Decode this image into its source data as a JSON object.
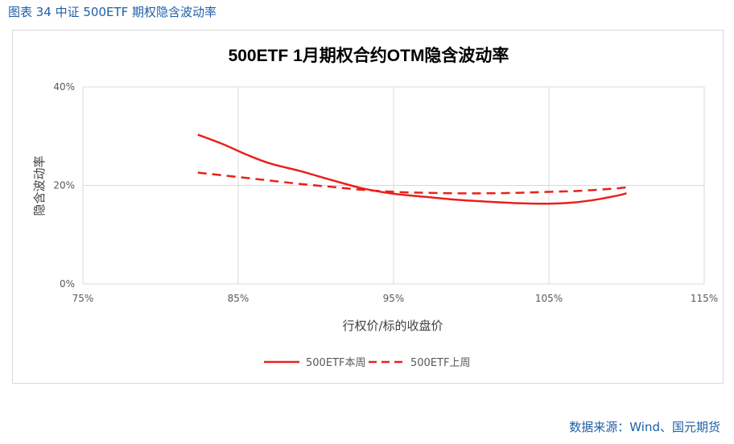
{
  "figure": {
    "caption": "图表 34 中证 500ETF 期权隐含波动率",
    "source": "数据来源：Wind、国元期货"
  },
  "chart_data": {
    "type": "line",
    "title": "500ETF 1月期权合约OTM隐含波动率",
    "xlabel": "行权价/标的收盘价",
    "ylabel": "隐含波动率",
    "xlim": [
      0.75,
      1.15
    ],
    "ylim": [
      0,
      0.4
    ],
    "x_ticks": [
      {
        "value": 0.75,
        "label": "75%"
      },
      {
        "value": 0.85,
        "label": "85%"
      },
      {
        "value": 0.95,
        "label": "95%"
      },
      {
        "value": 1.05,
        "label": "105%"
      },
      {
        "value": 1.15,
        "label": "115%"
      }
    ],
    "y_ticks": [
      {
        "value": 0.0,
        "label": "0%"
      },
      {
        "value": 0.2,
        "label": "20%"
      },
      {
        "value": 0.4,
        "label": "40%"
      }
    ],
    "grid": true,
    "legend_position": "bottom",
    "series": [
      {
        "name": "500ETF本周",
        "style": "solid",
        "color": "#e8211a",
        "points": [
          [
            0.824,
            0.303
          ],
          [
            0.84,
            0.284
          ],
          [
            0.855,
            0.263
          ],
          [
            0.87,
            0.245
          ],
          [
            0.89,
            0.229
          ],
          [
            0.91,
            0.211
          ],
          [
            0.93,
            0.194
          ],
          [
            0.95,
            0.183
          ],
          [
            0.97,
            0.177
          ],
          [
            0.99,
            0.171
          ],
          [
            1.01,
            0.167
          ],
          [
            1.03,
            0.164
          ],
          [
            1.05,
            0.163
          ],
          [
            1.065,
            0.165
          ],
          [
            1.08,
            0.171
          ],
          [
            1.095,
            0.18
          ],
          [
            1.1,
            0.184
          ]
        ]
      },
      {
        "name": "500ETF上周",
        "style": "dashed",
        "color": "#e8211a",
        "points": [
          [
            0.824,
            0.226
          ],
          [
            0.85,
            0.217
          ],
          [
            0.87,
            0.21
          ],
          [
            0.89,
            0.203
          ],
          [
            0.91,
            0.197
          ],
          [
            0.93,
            0.191
          ],
          [
            0.95,
            0.187
          ],
          [
            0.97,
            0.185
          ],
          [
            0.99,
            0.184
          ],
          [
            1.01,
            0.184
          ],
          [
            1.03,
            0.185
          ],
          [
            1.05,
            0.187
          ],
          [
            1.07,
            0.189
          ],
          [
            1.09,
            0.193
          ],
          [
            1.1,
            0.196
          ]
        ]
      }
    ]
  },
  "colors": {
    "caption": "#1f5fa8",
    "grid": "#d9d9d9",
    "axis_text": "#595959",
    "title": "#000000"
  }
}
